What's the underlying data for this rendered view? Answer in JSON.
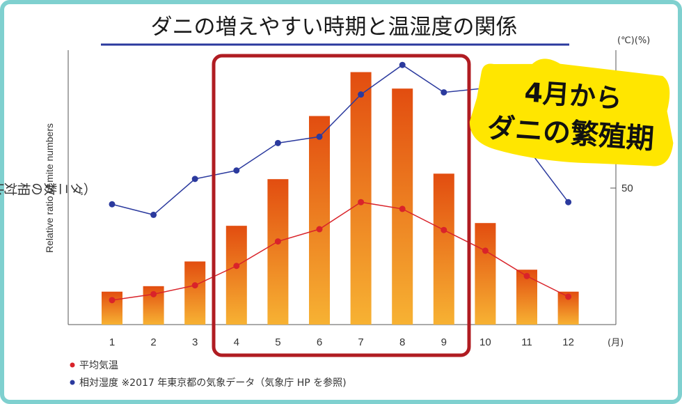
{
  "title": "ダニの増えやすい時期と温湿度の関係",
  "units_label": "(℃)(%)",
  "y_label_jp": "（ダニ数の相対比率）",
  "y_label_en": "Relative ratio of mite numbers",
  "x_unit": "(月)",
  "legend": {
    "temp": "平均気温",
    "humidity": "相対湿度 ※2017 年東京都の気象データ（気象庁 HP を参照)"
  },
  "callout": {
    "line1": "4月から",
    "line2": "ダニの繁殖期"
  },
  "colors": {
    "bar_top": "#e24d10",
    "bar_bottom": "#f7b233",
    "temp_line": "#d9232a",
    "humidity_line": "#2b3a9e",
    "highlight_box": "#b01c22",
    "callout_bg": "#ffe600",
    "title_underline": "#2b3a9e"
  },
  "chart_data": {
    "type": "bar",
    "categories": [
      "1",
      "2",
      "3",
      "4",
      "5",
      "6",
      "7",
      "8",
      "9",
      "10",
      "11",
      "12"
    ],
    "highlight_months": [
      "4",
      "5",
      "6",
      "7",
      "8",
      "9"
    ],
    "y_right_ticks": [
      50
    ],
    "series": [
      {
        "kind": "bar",
        "values": [
          0.12,
          0.14,
          0.23,
          0.36,
          0.53,
          0.76,
          0.92,
          0.86,
          0.55,
          0.37,
          0.2,
          0.12
        ]
      },
      {
        "name": "平均気温",
        "kind": "line",
        "unit": "℃",
        "values": [
          5.8,
          7.2,
          9.3,
          13.9,
          19.7,
          22.6,
          29.0,
          27.4,
          22.4,
          17.5,
          11.5,
          6.6
        ]
      },
      {
        "name": "相対湿度",
        "kind": "line",
        "unit": "%",
        "values": [
          57,
          52,
          69,
          73,
          86,
          89,
          109,
          123,
          110,
          112,
          84,
          58
        ]
      }
    ],
    "ylim_right": [
      0,
      130
    ],
    "temp_scale": [
      0,
      65
    ]
  }
}
